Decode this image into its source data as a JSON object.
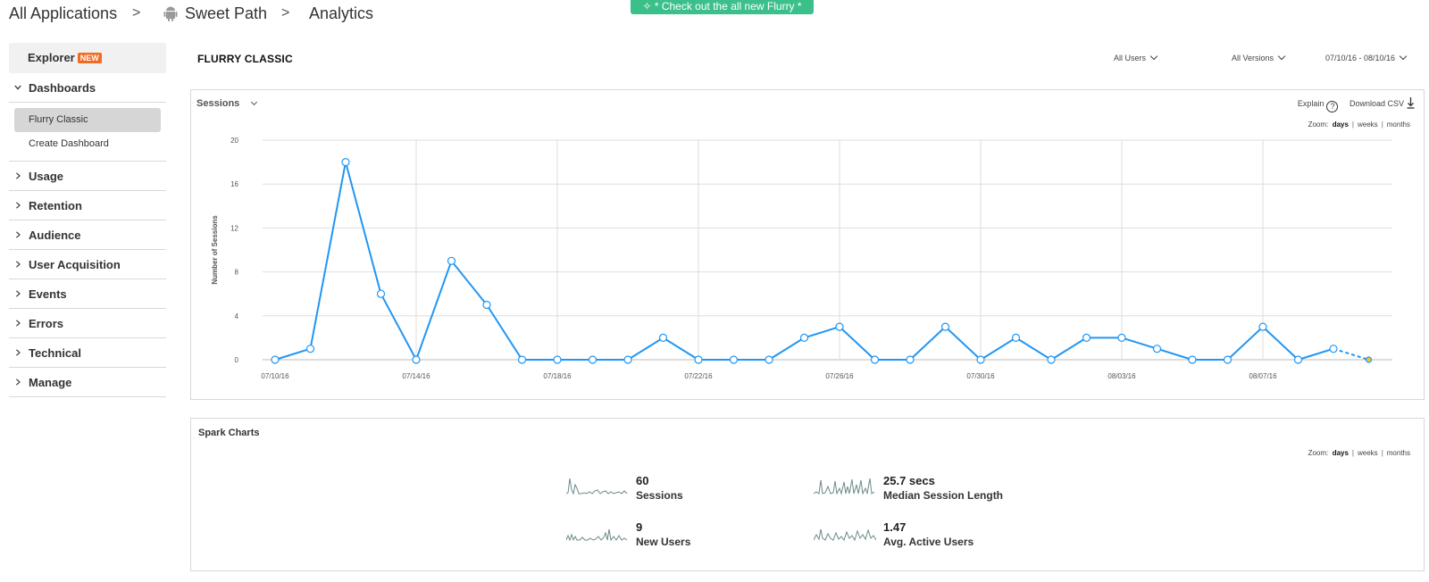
{
  "breadcrumb": {
    "items": [
      "All Applications",
      "Sweet Path",
      "Analytics"
    ],
    "separator": ">"
  },
  "promo": {
    "label": "* Check out the all new Flurry *"
  },
  "sidebar": {
    "explorer": {
      "label": "Explorer",
      "badge": "NEW"
    },
    "dashboards": {
      "label": "Dashboards",
      "items": [
        {
          "label": "Flurry Classic",
          "active": true
        },
        {
          "label": "Create Dashboard",
          "active": false
        }
      ]
    },
    "sections": [
      "Usage",
      "Retention",
      "Audience",
      "User Acquisition",
      "Events",
      "Errors",
      "Technical",
      "Manage"
    ]
  },
  "header": {
    "title": "FLURRY CLASSIC",
    "users_filter": "All Users",
    "versions_filter": "All Versions",
    "date_range": "07/10/16 - 08/10/16"
  },
  "chart_panel": {
    "metric": "Sessions",
    "explain_label": "Explain",
    "help_glyph": "?",
    "download_label": "Download CSV",
    "zoom": {
      "label": "Zoom:",
      "options": [
        "days",
        "weeks",
        "months"
      ],
      "selected": "days",
      "divider": "|"
    }
  },
  "chart_data": {
    "type": "line",
    "ylabel": "Number of Sessions",
    "ylim": [
      0,
      20
    ],
    "yticks": [
      0,
      4,
      8,
      12,
      16,
      20
    ],
    "x": [
      "07/10/16",
      "07/11/16",
      "07/12/16",
      "07/13/16",
      "07/14/16",
      "07/15/16",
      "07/16/16",
      "07/17/16",
      "07/18/16",
      "07/19/16",
      "07/20/16",
      "07/21/16",
      "07/22/16",
      "07/23/16",
      "07/24/16",
      "07/25/16",
      "07/26/16",
      "07/27/16",
      "07/28/16",
      "07/29/16",
      "07/30/16",
      "07/31/16",
      "08/01/16",
      "08/02/16",
      "08/03/16",
      "08/04/16",
      "08/05/16",
      "08/06/16",
      "08/07/16",
      "08/08/16",
      "08/09/16",
      "08/10/16"
    ],
    "xticks": [
      "07/10/16",
      "07/14/16",
      "07/18/16",
      "07/22/16",
      "07/26/16",
      "07/30/16",
      "08/03/16",
      "08/07/16"
    ],
    "series": [
      {
        "values": [
          0,
          1,
          18,
          6,
          0,
          9,
          5,
          0,
          0,
          0,
          0,
          2,
          0,
          0,
          0,
          2,
          3,
          0,
          0,
          3,
          0,
          2,
          0,
          2,
          2,
          1,
          0,
          0,
          3,
          0,
          1,
          0
        ],
        "color": "#2196f3",
        "last_point_partial": true,
        "partial_marker_color": "#f4c430"
      }
    ],
    "grid": true
  },
  "spark": {
    "title": "Spark Charts",
    "zoom": {
      "label": "Zoom:",
      "options": [
        "days",
        "weeks",
        "months"
      ],
      "selected": "days",
      "divider": "|"
    },
    "items": [
      {
        "value": "60",
        "label": "Sessions"
      },
      {
        "value": "25.7 secs",
        "label": "Median Session Length"
      },
      {
        "value": "9",
        "label": "New Users"
      },
      {
        "value": "1.47",
        "label": "Avg. Active Users"
      }
    ],
    "line_color": "#6b8a8a"
  }
}
